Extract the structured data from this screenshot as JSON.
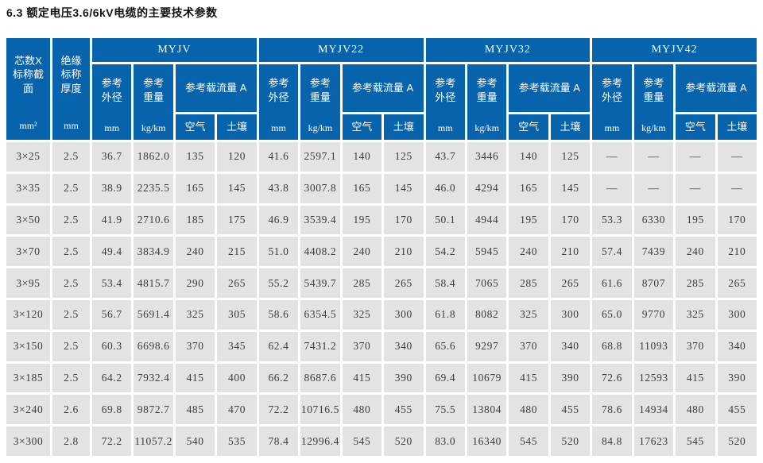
{
  "title": "6.3 额定电压3.6/6kV电缆的主要技术参数",
  "colors": {
    "header_bg": "#0863ad",
    "header_text": "#ffffff",
    "cell_bg": "#e3e3e3",
    "cell_text": "#3c3c3c",
    "gap": "#ffffff"
  },
  "table": {
    "corner_columns": [
      {
        "label": "芯数X\n标称截\n面",
        "unit": "mm²"
      },
      {
        "label": "绝缘\n标称\n厚度",
        "unit": "mm"
      }
    ],
    "groups": [
      {
        "name": "MYJV"
      },
      {
        "name": "MYJV22"
      },
      {
        "name": "MYJV32"
      },
      {
        "name": "MYJV42"
      }
    ],
    "sub_headers": {
      "outer_diameter": {
        "label": "参考\n外径",
        "unit": "mm"
      },
      "weight": {
        "label": "参考\n重量",
        "unit": "kg/km"
      },
      "ampacity": {
        "label": "参考载流量 A",
        "air": "空气",
        "soil": "土壤"
      }
    },
    "rows": [
      {
        "size": "3×25",
        "thickness": "2.5",
        "values": [
          "36.7",
          "1862.0",
          "135",
          "120",
          "41.6",
          "2597.1",
          "140",
          "125",
          "43.7",
          "3446",
          "140",
          "125",
          "—",
          "—",
          "—",
          "—"
        ]
      },
      {
        "size": "3×35",
        "thickness": "2.5",
        "values": [
          "38.9",
          "2235.5",
          "165",
          "145",
          "43.8",
          "3007.8",
          "165",
          "145",
          "46.0",
          "4294",
          "165",
          "145",
          "—",
          "—",
          "—",
          "—"
        ]
      },
      {
        "size": "3×50",
        "thickness": "2.5",
        "values": [
          "41.9",
          "2710.6",
          "185",
          "175",
          "46.9",
          "3539.4",
          "195",
          "170",
          "50.1",
          "4944",
          "195",
          "170",
          "53.3",
          "6330",
          "195",
          "170"
        ]
      },
      {
        "size": "3×70",
        "thickness": "2.5",
        "values": [
          "49.4",
          "3834.9",
          "240",
          "215",
          "51.0",
          "4408.2",
          "240",
          "210",
          "54.2",
          "5945",
          "240",
          "210",
          "57.4",
          "7439",
          "240",
          "210"
        ]
      },
      {
        "size": "3×95",
        "thickness": "2.5",
        "values": [
          "53.4",
          "4815.7",
          "290",
          "265",
          "55.2",
          "5439.7",
          "285",
          "265",
          "58.4",
          "7065",
          "285",
          "265",
          "61.6",
          "8707",
          "285",
          "265"
        ]
      },
      {
        "size": "3×120",
        "thickness": "2.5",
        "values": [
          "56.7",
          "5691.4",
          "325",
          "305",
          "58.6",
          "6354.5",
          "325",
          "300",
          "61.8",
          "8082",
          "325",
          "300",
          "65.0",
          "9770",
          "325",
          "300"
        ]
      },
      {
        "size": "3×150",
        "thickness": "2.5",
        "values": [
          "60.3",
          "6698.6",
          "370",
          "345",
          "62.4",
          "7431.2",
          "370",
          "340",
          "65.6",
          "9297",
          "370",
          "340",
          "68.8",
          "11093",
          "370",
          "340"
        ]
      },
      {
        "size": "3×185",
        "thickness": "2.5",
        "values": [
          "64.2",
          "7932.4",
          "415",
          "400",
          "66.2",
          "8687.6",
          "415",
          "390",
          "69.4",
          "10679",
          "415",
          "390",
          "72.6",
          "12593",
          "415",
          "390"
        ]
      },
      {
        "size": "3×240",
        "thickness": "2.6",
        "values": [
          "69.8",
          "9872.7",
          "485",
          "470",
          "72.2",
          "10716.5",
          "480",
          "455",
          "75.5",
          "13804",
          "480",
          "455",
          "78.6",
          "14934",
          "480",
          "455"
        ]
      },
      {
        "size": "3×300",
        "thickness": "2.8",
        "values": [
          "72.2",
          "11057.2",
          "540",
          "535",
          "78.4",
          "12996.4",
          "545",
          "520",
          "83.0",
          "16340",
          "545",
          "520",
          "84.8",
          "17623",
          "545",
          "520"
        ]
      }
    ]
  }
}
